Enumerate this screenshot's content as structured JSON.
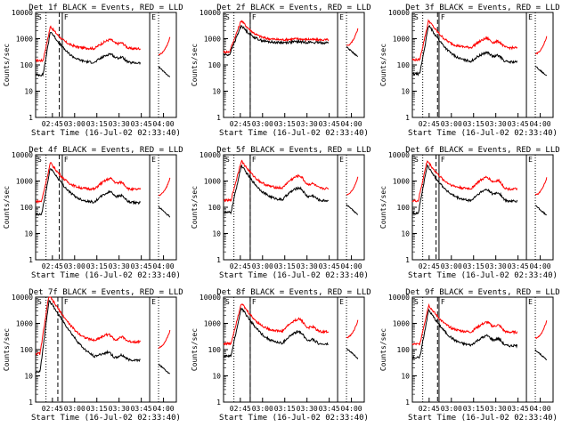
{
  "chart_data": [
    {
      "type": "line",
      "title": "Det 1f BLACK = Events, RED = LLD",
      "xlabel": "Start Time (16-Jul-02 02:33:40)",
      "ylabel": "Counts/sec",
      "yscale": "log",
      "ylim": [
        1,
        10000
      ],
      "xlim_minutes": [
        0,
        95
      ],
      "xtick_labels": [
        "02:45",
        "03:00",
        "03:15",
        "03:30",
        "03:45",
        "04:00"
      ],
      "ytick_labels": [
        "1",
        "10",
        "100",
        "1000",
        "10000"
      ],
      "markers": {
        "attenuator": "S",
        "front_segment": "F",
        "end": "E"
      },
      "markers_min": [
        7,
        18,
        77
      ],
      "series": [
        {
          "name": "Events",
          "color": "#000000"
        },
        {
          "name": "LLD",
          "color": "#ff0000"
        }
      ],
      "params": {
        "peak_min": 10,
        "peak": 3000,
        "rise_start": 5,
        "ev_decay_level": 120,
        "ll_decay_level": 420,
        "bump2_min": 50,
        "bump2": 2.2,
        "bump3_min": 58,
        "bump3": 1.6,
        "gap": [
          71,
          83
        ],
        "end_min": 91
      }
    },
    {
      "type": "line",
      "title": "Det 2f BLACK = Events, RED = LLD",
      "xlabel": "Start Time (16-Jul-02 02:33:40)",
      "ylabel": "Counts/sec",
      "yscale": "log",
      "ylim": [
        1,
        10000
      ],
      "xlim_minutes": [
        0,
        95
      ],
      "xtick_labels": [
        "02:45",
        "03:00",
        "03:15",
        "03:30",
        "03:45",
        "04:00"
      ],
      "ytick_labels": [
        "1",
        "10",
        "100",
        "1000",
        "10000"
      ],
      "markers": {
        "attenuator": "S",
        "front_segment": "F",
        "end": "E"
      },
      "markers_min": [
        7,
        18,
        77
      ],
      "series": [
        {
          "name": "Events",
          "color": "#000000"
        },
        {
          "name": "LLD",
          "color": "#ff0000"
        }
      ],
      "params": {
        "peak_min": 12,
        "peak": 5000,
        "rise_start": 4,
        "ev_decay_level": 700,
        "ll_decay_level": 900,
        "bump2_min": 50,
        "bump2": 1.1,
        "bump3_min": 58,
        "bump3": 1.05,
        "gap": [
          71,
          83
        ],
        "end_min": 91
      }
    },
    {
      "type": "line",
      "title": "Det 3f BLACK = Events, RED = LLD",
      "xlabel": "Start Time (16-Jul-02 02:33:40)",
      "ylabel": "Counts/sec",
      "yscale": "log",
      "ylim": [
        1,
        10000
      ],
      "xlim_minutes": [
        0,
        95
      ],
      "xtick_labels": [
        "02:45",
        "03:00",
        "03:15",
        "03:30",
        "03:45",
        "04:00"
      ],
      "ytick_labels": [
        "1",
        "10",
        "100",
        "1000",
        "10000"
      ],
      "markers": {
        "attenuator": "S",
        "front_segment": "F",
        "end": "E"
      },
      "markers_min": [
        7,
        18,
        77
      ],
      "series": [
        {
          "name": "Events",
          "color": "#000000"
        },
        {
          "name": "LLD",
          "color": "#ff0000"
        }
      ],
      "params": {
        "peak_min": 11,
        "peak": 5000,
        "rise_start": 5,
        "ev_decay_level": 130,
        "ll_decay_level": 450,
        "bump2_min": 50,
        "bump2": 2.3,
        "bump3_min": 58,
        "bump3": 1.7,
        "gap": [
          71,
          83
        ],
        "end_min": 91
      }
    },
    {
      "type": "line",
      "title": "Det 4f BLACK = Events, RED = LLD",
      "xlabel": "Start Time (16-Jul-02 02:33:40)",
      "ylabel": "Counts/sec",
      "yscale": "log",
      "ylim": [
        1,
        10000
      ],
      "xlim_minutes": [
        0,
        95
      ],
      "xtick_labels": [
        "02:45",
        "03:00",
        "03:15",
        "03:30",
        "03:45",
        "04:00"
      ],
      "ytick_labels": [
        "1",
        "10",
        "100",
        "1000",
        "10000"
      ],
      "markers": {
        "attenuator": "S",
        "front_segment": "F",
        "end": "E"
      },
      "markers_min": [
        7,
        18,
        77
      ],
      "series": [
        {
          "name": "Events",
          "color": "#000000"
        },
        {
          "name": "LLD",
          "color": "#ff0000"
        }
      ],
      "params": {
        "peak_min": 10,
        "peak": 5000,
        "rise_start": 4,
        "ev_decay_level": 150,
        "ll_decay_level": 480,
        "bump2_min": 50,
        "bump2": 2.6,
        "bump3_min": 58,
        "bump3": 1.8,
        "gap": [
          71,
          83
        ],
        "end_min": 91
      }
    },
    {
      "type": "line",
      "title": "Det 5f BLACK = Events, RED = LLD",
      "xlabel": "Start Time (16-Jul-02 02:33:40)",
      "ylabel": "Counts/sec",
      "yscale": "log",
      "ylim": [
        1,
        10000
      ],
      "xlim_minutes": [
        0,
        95
      ],
      "xtick_labels": [
        "02:45",
        "03:00",
        "03:15",
        "03:30",
        "03:45",
        "04:00"
      ],
      "ytick_labels": [
        "1",
        "10",
        "100",
        "1000",
        "10000"
      ],
      "markers": {
        "attenuator": "S",
        "front_segment": "F",
        "end": "E"
      },
      "markers_min": [
        7,
        18,
        77
      ],
      "series": [
        {
          "name": "Events",
          "color": "#000000"
        },
        {
          "name": "LLD",
          "color": "#ff0000"
        }
      ],
      "params": {
        "peak_min": 12,
        "peak": 6000,
        "rise_start": 5,
        "ev_decay_level": 180,
        "ll_decay_level": 520,
        "bump2_min": 51,
        "bump2": 3.0,
        "bump3_min": 60,
        "bump3": 1.5,
        "gap": [
          71,
          83
        ],
        "end_min": 91
      }
    },
    {
      "type": "line",
      "title": "Det 6f BLACK = Events, RED = LLD",
      "xlabel": "Start Time (16-Jul-02 02:33:40)",
      "ylabel": "Counts/sec",
      "yscale": "log",
      "ylim": [
        1,
        10000
      ],
      "xlim_minutes": [
        0,
        95
      ],
      "xtick_labels": [
        "02:45",
        "03:00",
        "03:15",
        "03:30",
        "03:45",
        "04:00"
      ],
      "ytick_labels": [
        "1",
        "10",
        "100",
        "1000",
        "10000"
      ],
      "markers": {
        "attenuator": "S",
        "front_segment": "F",
        "end": "E"
      },
      "markers_min": [
        7,
        18,
        77
      ],
      "series": [
        {
          "name": "Events",
          "color": "#000000"
        },
        {
          "name": "LLD",
          "color": "#ff0000"
        }
      ],
      "params": {
        "peak_min": 10,
        "peak": 6000,
        "rise_start": 4,
        "ev_decay_level": 170,
        "ll_decay_level": 500,
        "bump2_min": 50,
        "bump2": 2.8,
        "bump3_min": 58,
        "bump3": 2.0,
        "gap": [
          71,
          83
        ],
        "end_min": 91
      }
    },
    {
      "type": "line",
      "title": "Det 7f BLACK = Events, RED = LLD",
      "xlabel": "Start Time (16-Jul-02 02:33:40)",
      "ylabel": "Counts/sec",
      "yscale": "log",
      "ylim": [
        1,
        10000
      ],
      "xlim_minutes": [
        0,
        95
      ],
      "xtick_labels": [
        "02:45",
        "03:00",
        "03:15",
        "03:30",
        "03:45",
        "04:00"
      ],
      "ytick_labels": [
        "1",
        "10",
        "100",
        "1000",
        "10000"
      ],
      "markers": {
        "attenuator": "S",
        "front_segment": "F",
        "end": "E"
      },
      "markers_min": [
        7,
        18,
        77
      ],
      "series": [
        {
          "name": "Events",
          "color": "#000000"
        },
        {
          "name": "LLD",
          "color": "#ff0000"
        }
      ],
      "params": {
        "peak_min": 9,
        "peak": 12000,
        "rise_start": 3,
        "ev_decay_level": 40,
        "ll_decay_level": 200,
        "bump2_min": 48,
        "bump2": 2.0,
        "bump3_min": 58,
        "bump3": 1.5,
        "gap": [
          71,
          83
        ],
        "end_min": 91
      }
    },
    {
      "type": "line",
      "title": "Det 8f BLACK = Events, RED = LLD",
      "xlabel": "Start Time (16-Jul-02 02:33:40)",
      "ylabel": "Counts/sec",
      "yscale": "log",
      "ylim": [
        1,
        10000
      ],
      "xlim_minutes": [
        0,
        95
      ],
      "xtick_labels": [
        "02:45",
        "03:00",
        "03:15",
        "03:30",
        "03:45",
        "04:00"
      ],
      "ytick_labels": [
        "1",
        "10",
        "100",
        "1000",
        "10000"
      ],
      "markers": {
        "attenuator": "S",
        "front_segment": "F",
        "end": "E"
      },
      "markers_min": [
        7,
        18,
        77
      ],
      "series": [
        {
          "name": "Events",
          "color": "#000000"
        },
        {
          "name": "LLD",
          "color": "#ff0000"
        }
      ],
      "params": {
        "peak_min": 12,
        "peak": 6000,
        "rise_start": 5,
        "ev_decay_level": 160,
        "ll_decay_level": 480,
        "bump2_min": 51,
        "bump2": 3.0,
        "bump3_min": 60,
        "bump3": 1.5,
        "gap": [
          71,
          83
        ],
        "end_min": 91
      }
    },
    {
      "type": "line",
      "title": "Det 9f BLACK = Events, RED = LLD",
      "xlabel": "Start Time (16-Jul-02 02:33:40)",
      "ylabel": "Counts/sec",
      "yscale": "log",
      "ylim": [
        1,
        10000
      ],
      "xlim_minutes": [
        0,
        95
      ],
      "xtick_labels": [
        "02:45",
        "03:00",
        "03:15",
        "03:30",
        "03:45",
        "04:00"
      ],
      "ytick_labels": [
        "1",
        "10",
        "100",
        "1000",
        "10000"
      ],
      "markers": {
        "attenuator": "S",
        "front_segment": "F",
        "end": "E"
      },
      "markers_min": [
        7,
        18,
        77
      ],
      "series": [
        {
          "name": "Events",
          "color": "#000000"
        },
        {
          "name": "LLD",
          "color": "#ff0000"
        }
      ],
      "params": {
        "peak_min": 11,
        "peak": 5000,
        "rise_start": 5,
        "ev_decay_level": 140,
        "ll_decay_level": 460,
        "bump2_min": 50,
        "bump2": 2.4,
        "bump3_min": 58,
        "bump3": 1.8,
        "gap": [
          71,
          83
        ],
        "end_min": 91
      }
    }
  ]
}
